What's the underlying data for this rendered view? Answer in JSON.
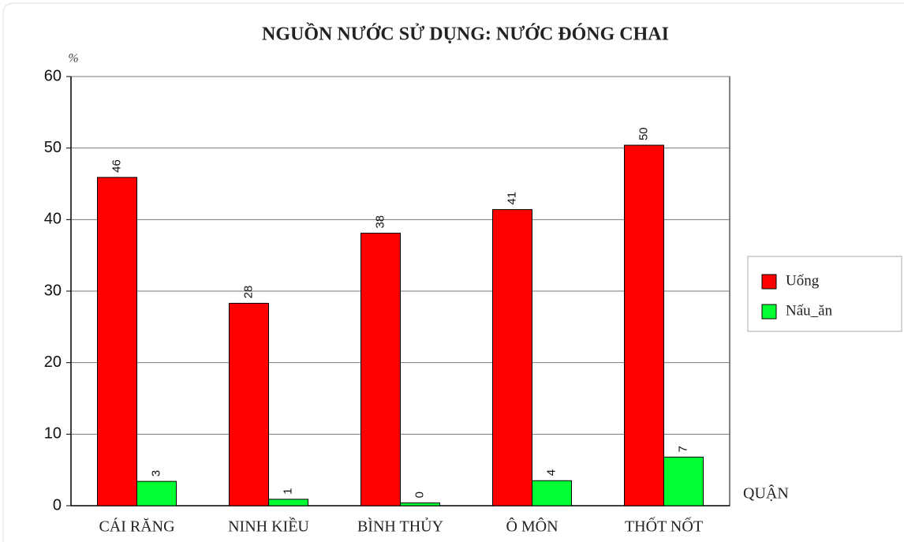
{
  "chart_data": {
    "type": "bar",
    "title": "NGUỒN NƯỚC SỬ DỤNG: NƯỚC ĐÓNG CHAI",
    "y_axis_label": "%",
    "x_axis_label": "QUẬN",
    "categories": [
      "CÁI RĂNG",
      "NINH KIỀU",
      "BÌNH THỦY",
      "Ô MÔN",
      "THỐT NỐT"
    ],
    "series": [
      {
        "name": "Uống",
        "color": "#ff0000",
        "values": [
          45.9,
          28.3,
          38.1,
          41.4,
          50.4
        ],
        "value_labels": [
          "46",
          "28",
          "38",
          "41",
          "50"
        ]
      },
      {
        "name": "Nấu_ăn",
        "color": "#00ff33",
        "values": [
          3.4,
          0.9,
          0.4,
          3.5,
          6.8
        ],
        "value_labels": [
          "3",
          "1",
          "0",
          "4",
          "7"
        ]
      }
    ],
    "ylim": [
      0,
      60
    ],
    "yticks": [
      0,
      10,
      20,
      30,
      40,
      50,
      60
    ],
    "grid": true,
    "legend": "right"
  }
}
